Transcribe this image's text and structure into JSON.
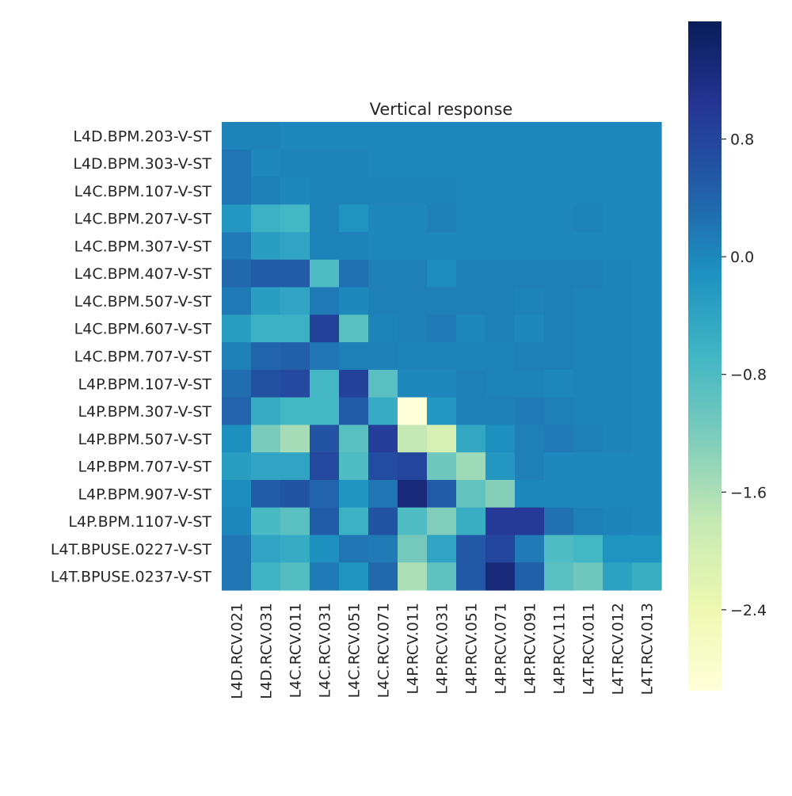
{
  "chart_data": {
    "type": "heatmap",
    "title": "Vertical response",
    "xlabel": "",
    "ylabel": "",
    "x_categories": [
      "L4D.RCV.021",
      "L4D.RCV.031",
      "L4C.RCV.011",
      "L4C.RCV.031",
      "L4C.RCV.051",
      "L4C.RCV.071",
      "L4P.RCV.011",
      "L4P.RCV.031",
      "L4P.RCV.051",
      "L4P.RCV.071",
      "L4P.RCV.091",
      "L4P.RCV.111",
      "L4T.RCV.011",
      "L4T.RCV.012",
      "L4T.RCV.013"
    ],
    "y_categories": [
      "L4D.BPM.203-V-ST",
      "L4D.BPM.303-V-ST",
      "L4C.BPM.107-V-ST",
      "L4C.BPM.207-V-ST",
      "L4C.BPM.307-V-ST",
      "L4C.BPM.407-V-ST",
      "L4C.BPM.507-V-ST",
      "L4C.BPM.607-V-ST",
      "L4C.BPM.707-V-ST",
      "L4P.BPM.107-V-ST",
      "L4P.BPM.307-V-ST",
      "L4P.BPM.507-V-ST",
      "L4P.BPM.707-V-ST",
      "L4P.BPM.907-V-ST",
      "L4P.BPM.1107-V-ST",
      "L4T.BPUSE.0227-V-ST",
      "L4T.BPUSE.0237-V-ST"
    ],
    "values": [
      [
        0.05,
        0.05,
        0.0,
        0.0,
        0.0,
        0.0,
        0.0,
        0.0,
        0.0,
        0.0,
        0.0,
        0.0,
        0.0,
        0.0,
        0.0
      ],
      [
        0.2,
        0.0,
        0.05,
        0.05,
        0.05,
        0.0,
        0.0,
        0.0,
        0.0,
        0.0,
        0.0,
        0.0,
        0.0,
        0.0,
        0.0
      ],
      [
        0.2,
        0.1,
        0.0,
        0.05,
        0.05,
        0.05,
        0.05,
        0.05,
        0.0,
        0.0,
        0.0,
        0.0,
        0.0,
        0.0,
        0.0
      ],
      [
        -0.2,
        -0.6,
        -0.7,
        0.05,
        -0.15,
        0.0,
        0.0,
        0.1,
        0.0,
        0.0,
        0.0,
        0.0,
        0.05,
        0.0,
        0.0
      ],
      [
        0.15,
        -0.3,
        -0.4,
        0.05,
        0.05,
        0.0,
        0.0,
        0.0,
        0.0,
        0.0,
        0.0,
        0.0,
        0.0,
        0.0,
        0.0
      ],
      [
        0.35,
        0.5,
        0.5,
        -0.8,
        0.25,
        0.1,
        0.1,
        -0.05,
        0.1,
        0.1,
        0.1,
        0.1,
        0.1,
        0.05,
        0.0
      ],
      [
        0.15,
        -0.3,
        -0.4,
        0.15,
        0.0,
        0.1,
        0.1,
        0.1,
        0.1,
        0.1,
        0.05,
        0.1,
        0.05,
        0.05,
        0.0
      ],
      [
        -0.3,
        -0.6,
        -0.6,
        0.85,
        -0.9,
        0.05,
        0.1,
        0.15,
        0.0,
        0.1,
        0.0,
        0.1,
        0.05,
        0.05,
        0.0
      ],
      [
        0.1,
        0.4,
        0.45,
        0.2,
        0.1,
        0.1,
        0.05,
        0.05,
        0.05,
        0.05,
        0.1,
        0.1,
        0.05,
        0.05,
        0.0
      ],
      [
        0.3,
        0.65,
        0.75,
        -0.7,
        0.85,
        -0.9,
        0.0,
        0.0,
        0.1,
        0.05,
        0.05,
        0.0,
        0.05,
        0.05,
        0.0
      ],
      [
        0.4,
        -0.5,
        -0.7,
        -0.7,
        0.5,
        -0.5,
        -3.0,
        -0.2,
        0.1,
        0.1,
        0.15,
        0.1,
        0.05,
        0.05,
        0.0
      ],
      [
        -0.1,
        -1.2,
        -1.55,
        0.6,
        -0.9,
        0.9,
        -1.8,
        -2.05,
        -0.45,
        -0.1,
        0.1,
        0.15,
        0.1,
        0.05,
        0.0
      ],
      [
        -0.3,
        -0.4,
        -0.4,
        0.75,
        -0.8,
        0.7,
        0.8,
        -1.1,
        -1.5,
        -0.2,
        0.1,
        0.0,
        0.0,
        0.0,
        0.0
      ],
      [
        -0.05,
        0.5,
        0.6,
        0.4,
        -0.15,
        0.2,
        1.3,
        0.5,
        -1.0,
        -1.3,
        0.0,
        0.0,
        0.0,
        0.0,
        0.0
      ],
      [
        0.0,
        -0.75,
        -0.9,
        0.5,
        -0.6,
        0.6,
        -0.8,
        -1.25,
        -0.55,
        0.95,
        0.95,
        0.25,
        0.1,
        0.05,
        0.0
      ],
      [
        0.2,
        -0.4,
        -0.5,
        -0.1,
        0.2,
        0.15,
        -1.15,
        -0.4,
        0.55,
        0.8,
        0.15,
        -0.8,
        -0.7,
        -0.15,
        -0.15
      ],
      [
        0.2,
        -0.65,
        -0.85,
        0.15,
        -0.15,
        0.35,
        -1.6,
        -0.95,
        0.55,
        1.3,
        0.45,
        -0.9,
        -1.1,
        -0.35,
        -0.55
      ]
    ],
    "zlim": [
      -2.95,
      1.6
    ],
    "colormap": "YlGnBu",
    "colorbar_ticks": [
      0.8,
      0.0,
      -0.8,
      -1.6,
      -2.4
    ],
    "colorbar_labels": [
      "0.8",
      "0.0",
      "−0.8",
      "−1.6",
      "−2.4"
    ],
    "grid": false,
    "legend": "colorbar-right"
  }
}
